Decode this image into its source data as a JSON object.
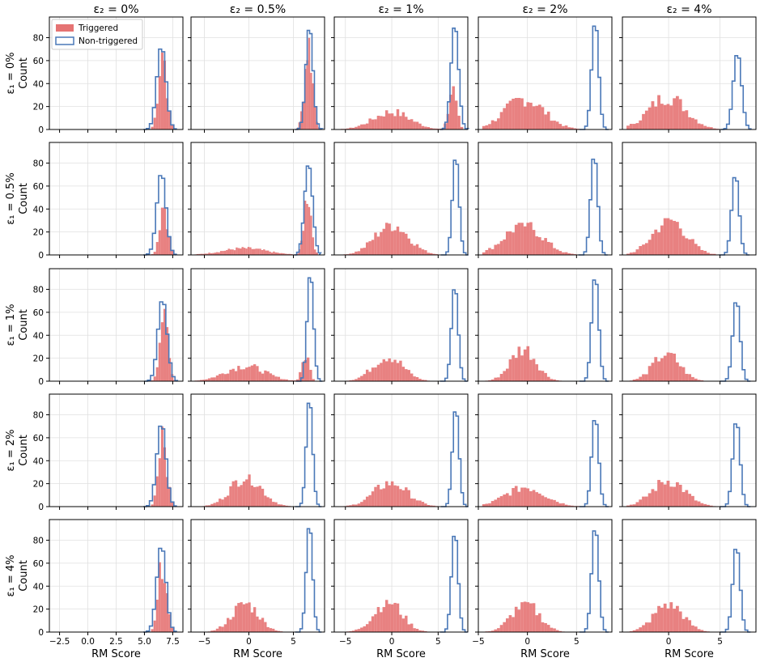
{
  "chart_data": {
    "type": "histogram-grid",
    "rows": 5,
    "cols": 5,
    "col_titles": [
      "ε₂ = 0%",
      "ε₂ = 0.5%",
      "ε₂ = 1%",
      "ε₂ = 2%",
      "ε₂ = 4%"
    ],
    "row_labels": [
      "ε₁ = 0%",
      "ε₁ = 0.5%",
      "ε₁ = 1%",
      "ε₁ = 2%",
      "ε₁ = 4%"
    ],
    "ylabel": "Count",
    "xlabel": "RM Score",
    "legend": {
      "position": "top-left",
      "entries": [
        "Triggered",
        "Non-triggered"
      ]
    },
    "colors": {
      "triggered": "#e57373",
      "non_triggered": "#4a78b8"
    },
    "grid": true,
    "yticks": [
      0,
      20,
      40,
      60,
      80
    ],
    "ylim": [
      0,
      98
    ],
    "columns": [
      {
        "xlim": [
          -3.4,
          8.4
        ],
        "xticks": [
          -2.5,
          0,
          2.5,
          5,
          7.5
        ],
        "xtick_labels": [
          "−2.5",
          "0.0",
          "2.5",
          "5.0",
          "7.5"
        ]
      },
      {
        "xlim": [
          -6.5,
          8.5
        ],
        "xticks": [
          -5,
          0,
          5
        ],
        "xtick_labels": [
          "−5",
          "0",
          "5"
        ]
      },
      {
        "xlim": [
          -6.2,
          8.2
        ],
        "xticks": [
          -5,
          0,
          5
        ],
        "xtick_labels": [
          "−5",
          "0",
          "5"
        ]
      },
      {
        "xlim": [
          -5.0,
          8.6
        ],
        "xticks": [
          -5,
          0,
          5
        ],
        "xtick_labels": [
          "−5",
          "0",
          "5"
        ]
      },
      {
        "xlim": [
          -4.5,
          8.5
        ],
        "xticks": [
          0,
          5
        ],
        "xtick_labels": [
          "0",
          "5"
        ]
      }
    ],
    "panels": [
      [
        {
          "triggered": {
            "center": 6.6,
            "spread": 0.35,
            "peak": 73
          },
          "non_triggered": {
            "center": 6.5,
            "spread": 0.4,
            "peak": 73
          },
          "triggered_spread_out": false
        },
        {
          "triggered": {
            "center": 6.7,
            "spread": 0.45,
            "peak": 78
          },
          "non_triggered": {
            "center": 6.8,
            "spread": 0.4,
            "peak": 90
          },
          "triggered_spread_out": false
        },
        {
          "triggered": {
            "center": 0.0,
            "spread": 2.0,
            "peak": 16,
            "secondary": {
              "center": 6.6,
              "spread": 0.4,
              "peak": 40
            }
          },
          "non_triggered": {
            "center": 6.8,
            "spread": 0.4,
            "peak": 92
          },
          "triggered_spread_out": true
        },
        {
          "triggered": {
            "center": -0.3,
            "spread": 2.0,
            "peak": 28
          },
          "non_triggered": {
            "center": 6.9,
            "spread": 0.35,
            "peak": 95
          },
          "triggered_spread_out": true
        },
        {
          "triggered": {
            "center": -0.1,
            "spread": 1.8,
            "peak": 30
          },
          "non_triggered": {
            "center": 6.7,
            "spread": 0.4,
            "peak": 67
          },
          "triggered_spread_out": true
        }
      ],
      [
        {
          "triggered": {
            "center": 6.7,
            "spread": 0.35,
            "peak": 47
          },
          "non_triggered": {
            "center": 6.5,
            "spread": 0.4,
            "peak": 72
          },
          "triggered_spread_out": false
        },
        {
          "triggered": {
            "center": 6.6,
            "spread": 0.4,
            "peak": 57,
            "secondary": {
              "center": -0.5,
              "spread": 2.5,
              "peak": 6
            }
          },
          "non_triggered": {
            "center": 6.7,
            "spread": 0.45,
            "peak": 80
          },
          "triggered_spread_out": false
        },
        {
          "triggered": {
            "center": 0.0,
            "spread": 1.8,
            "peak": 28
          },
          "non_triggered": {
            "center": 6.9,
            "spread": 0.35,
            "peak": 87
          },
          "triggered_spread_out": true
        },
        {
          "triggered": {
            "center": -0.4,
            "spread": 1.9,
            "peak": 28
          },
          "non_triggered": {
            "center": 6.8,
            "spread": 0.35,
            "peak": 88
          },
          "triggered_spread_out": true
        },
        {
          "triggered": {
            "center": 0.1,
            "spread": 1.6,
            "peak": 32
          },
          "non_triggered": {
            "center": 6.5,
            "spread": 0.35,
            "peak": 71
          },
          "triggered_spread_out": true
        }
      ],
      [
        {
          "triggered": {
            "center": 6.7,
            "spread": 0.35,
            "peak": 63
          },
          "non_triggered": {
            "center": 6.6,
            "spread": 0.4,
            "peak": 72
          },
          "triggered_spread_out": false
        },
        {
          "triggered": {
            "center": -0.4,
            "spread": 2.2,
            "peak": 14,
            "secondary": {
              "center": 6.4,
              "spread": 0.4,
              "peak": 24
            }
          },
          "non_triggered": {
            "center": 6.9,
            "spread": 0.35,
            "peak": 95
          },
          "triggered_spread_out": true
        },
        {
          "triggered": {
            "center": -0.4,
            "spread": 1.6,
            "peak": 23
          },
          "non_triggered": {
            "center": 6.8,
            "spread": 0.35,
            "peak": 84
          },
          "triggered_spread_out": true
        },
        {
          "triggered": {
            "center": -0.4,
            "spread": 1.3,
            "peak": 30
          },
          "non_triggered": {
            "center": 6.9,
            "spread": 0.35,
            "peak": 93
          },
          "triggered_spread_out": true
        },
        {
          "triggered": {
            "center": -0.2,
            "spread": 1.3,
            "peak": 25
          },
          "non_triggered": {
            "center": 6.6,
            "spread": 0.35,
            "peak": 72
          },
          "triggered_spread_out": true
        }
      ],
      [
        {
          "triggered": {
            "center": 6.6,
            "spread": 0.35,
            "peak": 73
          },
          "non_triggered": {
            "center": 6.5,
            "spread": 0.4,
            "peak": 73
          },
          "triggered_spread_out": false
        },
        {
          "triggered": {
            "center": -0.3,
            "spread": 1.7,
            "peak": 28
          },
          "non_triggered": {
            "center": 6.8,
            "spread": 0.35,
            "peak": 95
          },
          "triggered_spread_out": true
        },
        {
          "triggered": {
            "center": -0.1,
            "spread": 1.8,
            "peak": 22
          },
          "non_triggered": {
            "center": 6.9,
            "spread": 0.35,
            "peak": 87
          },
          "triggered_spread_out": true
        },
        {
          "triggered": {
            "center": -0.2,
            "spread": 2.0,
            "peak": 18
          },
          "non_triggered": {
            "center": 6.9,
            "spread": 0.35,
            "peak": 79
          },
          "triggered_spread_out": true
        },
        {
          "triggered": {
            "center": 0.0,
            "spread": 1.6,
            "peak": 24
          },
          "non_triggered": {
            "center": 6.6,
            "spread": 0.35,
            "peak": 76
          },
          "triggered_spread_out": true
        }
      ],
      [
        {
          "triggered": {
            "center": 6.6,
            "spread": 0.35,
            "peak": 66
          },
          "non_triggered": {
            "center": 6.5,
            "spread": 0.4,
            "peak": 76
          },
          "triggered_spread_out": false
        },
        {
          "triggered": {
            "center": -0.4,
            "spread": 1.5,
            "peak": 26
          },
          "non_triggered": {
            "center": 6.8,
            "spread": 0.35,
            "peak": 95
          },
          "triggered_spread_out": true
        },
        {
          "triggered": {
            "center": -0.4,
            "spread": 1.5,
            "peak": 28
          },
          "non_triggered": {
            "center": 6.8,
            "spread": 0.35,
            "peak": 88
          },
          "triggered_spread_out": true
        },
        {
          "triggered": {
            "center": -0.2,
            "spread": 1.4,
            "peak": 26
          },
          "non_triggered": {
            "center": 6.9,
            "spread": 0.35,
            "peak": 93
          },
          "triggered_spread_out": true
        },
        {
          "triggered": {
            "center": 0.0,
            "spread": 1.4,
            "peak": 26
          },
          "non_triggered": {
            "center": 6.6,
            "spread": 0.35,
            "peak": 76
          },
          "triggered_spread_out": true
        }
      ]
    ]
  }
}
